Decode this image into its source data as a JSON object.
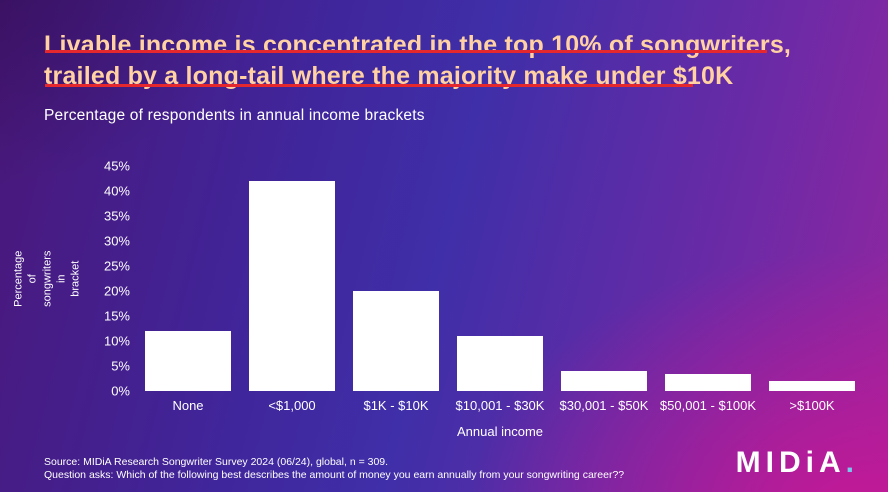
{
  "header": {
    "title_line1": "Livable income is concentrated in the top 10% of songwriters,",
    "title_line2": "trailed by a long-tail where the majority make under $10K",
    "subtitle": "Percentage of respondents in annual income brackets"
  },
  "chart_data": {
    "type": "bar",
    "title": "Percentage of respondents in annual income brackets",
    "categories": [
      "None",
      "<$1,000",
      "$1K - $10K",
      "$10,001 - $30K",
      "$30,001 - $50K",
      "$50,001 - $100K",
      ">$100K"
    ],
    "values": [
      12,
      42,
      20,
      11,
      4,
      3.5,
      2
    ],
    "xlabel": "Annual income",
    "ylabel": "Percentage of songwriters in bracket",
    "ylim": [
      0,
      45
    ],
    "yticks": [
      45,
      40,
      35,
      30,
      25,
      20,
      15,
      10,
      5,
      0
    ],
    "ytick_suffix": "%",
    "grid": false,
    "legend_position": "none",
    "bar_color": "#ffffff"
  },
  "axis": {
    "ylabel_line1": "Percentage of songwriters in",
    "ylabel_line2": "bracket",
    "xlabel": "Annual income"
  },
  "footer": {
    "source": "Source: MIDiA Research Songwriter Survey 2024 (06/24), global, n = 309.",
    "question": "Question asks: Which of the following best describes the amount of money you earn annually from your songwriting career??"
  },
  "logo": {
    "text": "MIDiA",
    "dot": "."
  },
  "colors": {
    "title_text": "#ffd1a3",
    "accent_red_line": "#e5282d",
    "bar": "#ffffff",
    "logo_dot": "#79c9ee",
    "background_gradient": [
      "#4a1779",
      "#3f2fa8",
      "#9426a0",
      "#cc1694"
    ]
  }
}
